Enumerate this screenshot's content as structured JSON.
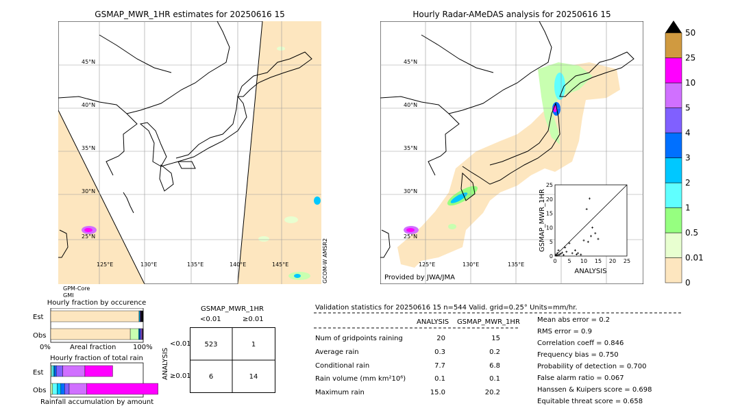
{
  "colors": {
    "land": "#ffffff",
    "sea": "#ffffff",
    "zero_rain": "#fde6bf",
    "coast": "#000000",
    "obs_pale": "#c8ffb0",
    "obs_mid": "#66ffff",
    "obs_blue": "#1e90ff",
    "obs_dark": "#0040ff",
    "obs_magenta": "#ff00ff"
  },
  "map_left": {
    "title": "GSMAP_MWR_1HR estimates for 20250616 15",
    "lat_labels": [
      "45°N",
      "40°N",
      "35°N",
      "30°N",
      "25°N"
    ],
    "lon_labels": [
      "125°E",
      "130°E",
      "135°E",
      "140°E",
      "145°E"
    ],
    "sensor_right": "GCOM-W AMSR2",
    "sensor_left_1": "GPM-Core",
    "sensor_left_2": "GMI"
  },
  "map_right": {
    "title": "Hourly Radar-AMeDAS analysis for 20250616 15",
    "lat_labels": [
      "45°N",
      "40°N",
      "35°N",
      "30°N",
      "25°N"
    ],
    "lon_labels": [
      "125°E",
      "130°E",
      "135°E"
    ],
    "credit": "Provided by JWA/JMA"
  },
  "colorbar": {
    "levels": [
      "0",
      "0.01",
      "0.5",
      "1",
      "2",
      "3",
      "4",
      "5",
      "10",
      "25",
      "50"
    ],
    "colors": [
      "#fde6bf",
      "#e8ffd0",
      "#96ff80",
      "#60ffff",
      "#00c8ff",
      "#0070ff",
      "#8060ff",
      "#d070ff",
      "#ff00ff",
      "#d09a40"
    ],
    "top_color": "#000000"
  },
  "chart_data": [
    {
      "type": "scatter",
      "title": "",
      "xlabel": "ANALYSIS",
      "ylabel": "GSMAP_MWR_1HR",
      "xlim": [
        0,
        25
      ],
      "ylim": [
        0,
        25
      ],
      "ticks": [
        "0",
        "5",
        "10",
        "15",
        "20",
        "25"
      ],
      "x": [
        0.3,
        0.5,
        0.8,
        1.0,
        1.2,
        1.5,
        2.0,
        2.5,
        3.0,
        3.5,
        4.0,
        5.0,
        6.0,
        7.0,
        7.5,
        8.0,
        9.0,
        10.0,
        11.0,
        11.5,
        12.0,
        12.5,
        13.0,
        14.0,
        15.0
      ],
      "y": [
        0.5,
        0.2,
        1.0,
        0.3,
        2.0,
        0.5,
        0.8,
        1.2,
        0.4,
        3.0,
        1.5,
        4.5,
        1.0,
        2.0,
        0.6,
        1.0,
        0.5,
        5.5,
        16.5,
        5.0,
        20.2,
        7.0,
        10.0,
        8.0,
        6.0
      ]
    },
    {
      "type": "bar",
      "title": "Hourly fraction by occurence",
      "categories": [
        "Est",
        "Obs"
      ],
      "xlabel": "Areal fraction",
      "x_tick_left": "0%",
      "x_tick_right": "100%",
      "series": [
        {
          "color": "#fde6bf",
          "values": [
            0.955,
            0.86
          ]
        },
        {
          "color": "#c8ffb0",
          "values": [
            0.0,
            0.09
          ]
        },
        {
          "color": "#00c8ff",
          "values": [
            0.01,
            0.01
          ]
        },
        {
          "color": "#0040ff",
          "values": [
            0.005,
            0.01
          ]
        },
        {
          "color": "#8060ff",
          "values": [
            0.005,
            0.01
          ]
        },
        {
          "color": "#d070ff",
          "values": [
            0.005,
            0.01
          ]
        },
        {
          "color": "#000000",
          "values": [
            0.02,
            0.01
          ]
        }
      ]
    },
    {
      "type": "bar",
      "title": "Hourly fraction of total rain",
      "categories": [
        "Est",
        "Obs"
      ],
      "xlabel": "Rainfall accumulation by amount",
      "series": [
        {
          "color": "#c8ffb0",
          "values": [
            0.01,
            0.02
          ]
        },
        {
          "color": "#60ffff",
          "values": [
            0.02,
            0.05
          ]
        },
        {
          "color": "#00c8ff",
          "values": [
            0.01,
            0.04
          ]
        },
        {
          "color": "#0070ff",
          "values": [
            0.02,
            0.04
          ]
        },
        {
          "color": "#8060ff",
          "values": [
            0.07,
            0.05
          ]
        },
        {
          "color": "#d070ff",
          "values": [
            0.24,
            0.19
          ]
        },
        {
          "color": "#ff00ff",
          "values": [
            0.3,
            0.77
          ]
        }
      ]
    }
  ],
  "contingency": {
    "title": "GSMAP_MWR_1HR",
    "col_lt": "<0.01",
    "col_ge": "≥0.01",
    "side_label": "ANALYSIS",
    "row_lt": "<0.01",
    "row_ge": "≥0.01",
    "cells": [
      "523",
      "1",
      "6",
      "14"
    ]
  },
  "validation": {
    "header": "Validation statistics for 20250616 15  n=544 Valid. grid=0.25° Units=mm/hr.",
    "col_analysis": "ANALYSIS",
    "col_gsmap": "GSMAP_MWR_1HR",
    "rows": [
      {
        "label": "Num of gridpoints raining",
        "a": "20",
        "g": "15"
      },
      {
        "label": "Average rain",
        "a": "0.3",
        "g": "0.2"
      },
      {
        "label": "Conditional rain",
        "a": "7.7",
        "g": "6.8"
      },
      {
        "label": "Rain volume (mm km²10⁶)",
        "a": "0.1",
        "g": "0.1"
      },
      {
        "label": "Maximum rain",
        "a": "15.0",
        "g": "20.2"
      }
    ],
    "scores": [
      "Mean abs error =    0.2",
      "RMS error =    0.9",
      "Correlation coeff =  0.846",
      "Frequency bias =  0.750",
      "Probability of detection =  0.700",
      "False alarm ratio =  0.067",
      "Hanssen & Kuipers score =  0.698",
      "Equitable threat score =  0.658"
    ]
  }
}
